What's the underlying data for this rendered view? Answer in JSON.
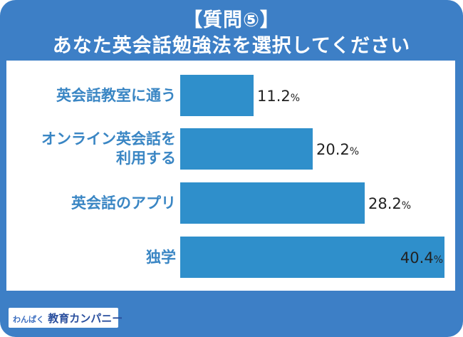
{
  "title": {
    "line1": "【質問⑤】",
    "line2": "あなた英会話勉強法を選択してください"
  },
  "chart_data": {
    "type": "bar",
    "orientation": "horizontal",
    "categories": [
      [
        "英会話教室に通う"
      ],
      [
        "オンライン英会話を",
        "利用する"
      ],
      [
        "英会話のアプリ"
      ],
      [
        "独学"
      ]
    ],
    "values": [
      11.2,
      20.2,
      28.2,
      40.4
    ],
    "unit": "%",
    "xlim": [
      0,
      40.4
    ],
    "bar_color": "#2f8fcb",
    "grid": false,
    "legend": "none"
  },
  "colors": {
    "frame": "#3d7fc6",
    "label": "#3a86c4",
    "bar": "#2f8fcb",
    "value": "#222222"
  },
  "footer": {
    "logo_part1": "わんぱく",
    "logo_part2": "教育カンパニー"
  }
}
